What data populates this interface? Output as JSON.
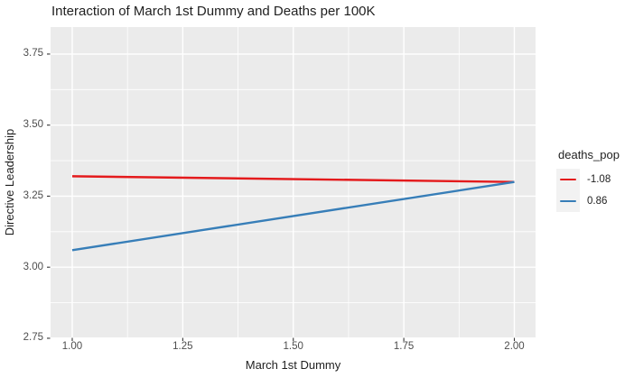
{
  "chart_data": {
    "type": "line",
    "title": "Interaction of March 1st Dummy and Deaths per 100K",
    "xlabel": "March 1st Dummy",
    "ylabel": "Directive Leadership",
    "legend_title": "deaths_pop",
    "legend_position": "right",
    "grid": true,
    "x_ticks": [
      1.0,
      1.25,
      1.5,
      1.75,
      2.0
    ],
    "x_tick_labels": [
      "1.00",
      "1.25",
      "1.50",
      "1.75",
      "2.00"
    ],
    "y_ticks": [
      2.75,
      3.0,
      3.25,
      3.5,
      3.75
    ],
    "y_tick_labels": [
      "2.75",
      "3.00",
      "3.25",
      "3.50",
      "3.75"
    ],
    "xlim": [
      0.951,
      2.048
    ],
    "ylim": [
      2.753,
      3.845
    ],
    "series": [
      {
        "name": "-1.08",
        "color": "#E41A1C",
        "x": [
          1.0,
          2.0
        ],
        "y": [
          3.32,
          3.3
        ]
      },
      {
        "name": "0.86",
        "color": "#377EB8",
        "x": [
          1.0,
          2.0
        ],
        "y": [
          3.06,
          3.3
        ]
      }
    ]
  },
  "colors": {
    "panel_bg": "#EBEBEB",
    "grid": "#FFFFFF",
    "legend_key_bg": "#F2F2F2",
    "tick_mark": "#333333",
    "tick_label": "#4D4D4D",
    "text": "#1F1F1F"
  }
}
